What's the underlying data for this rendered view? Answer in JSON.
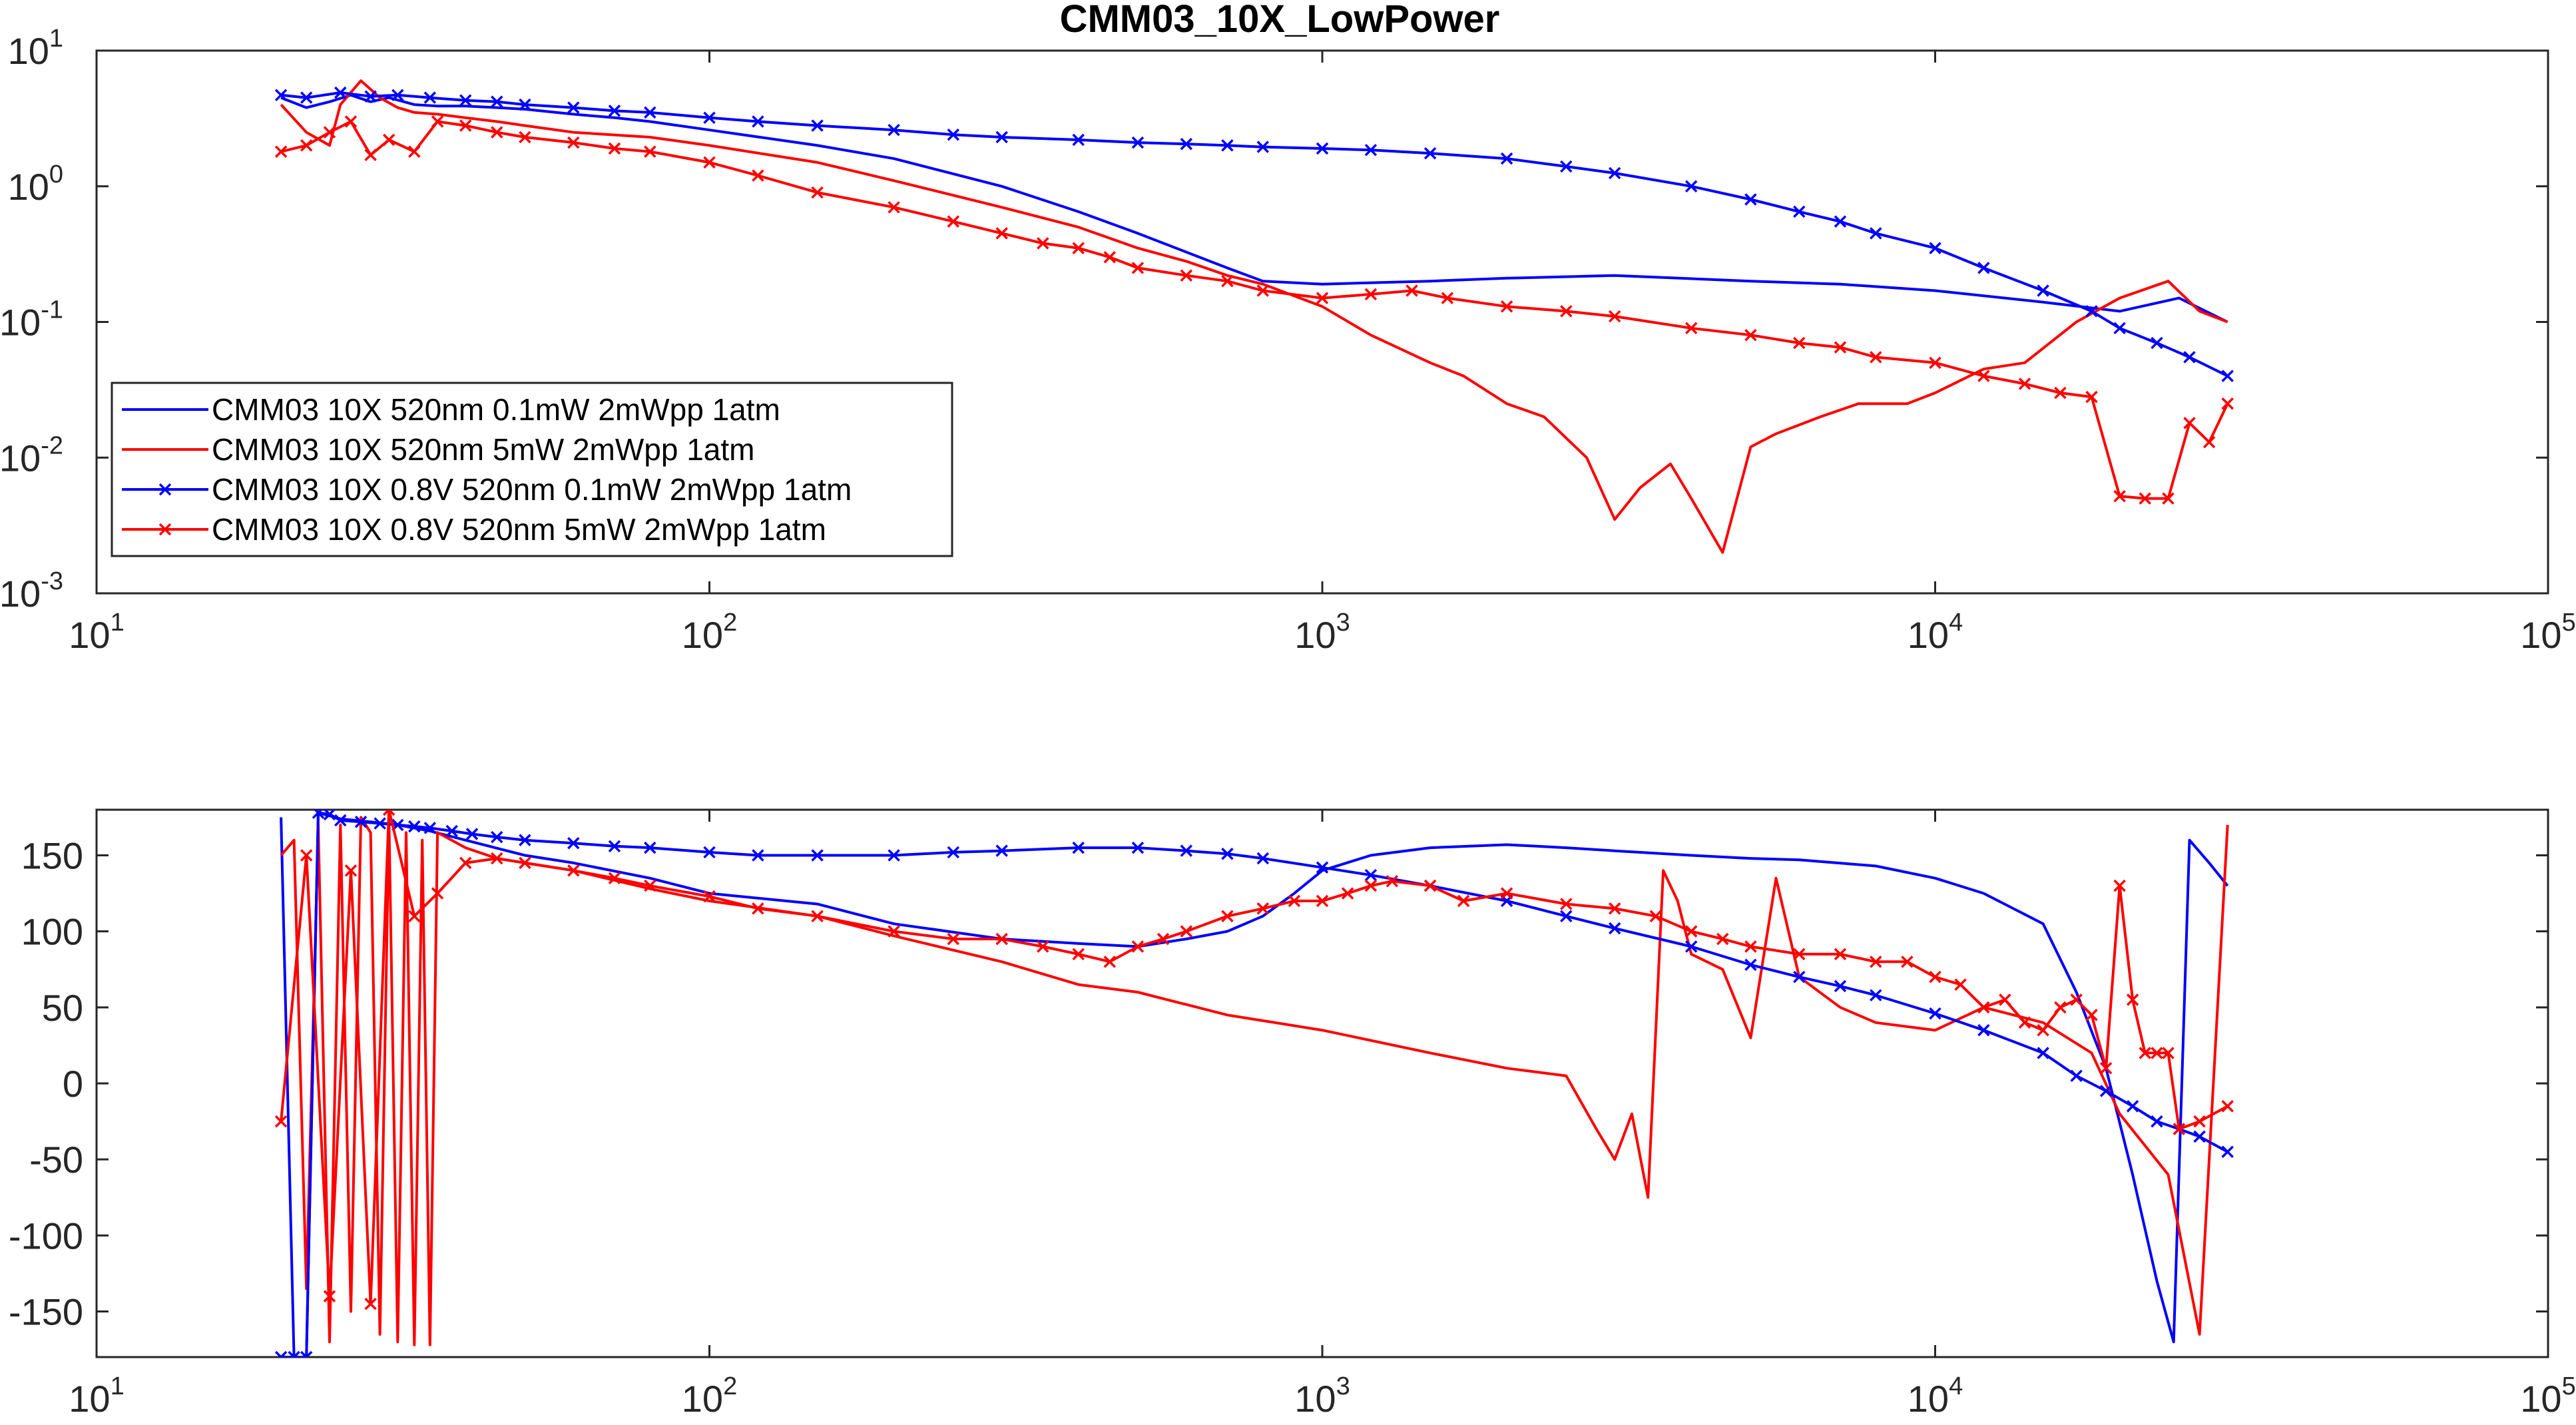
{
  "figure": {
    "title": "CMM03_10X_LowPower"
  },
  "colors": {
    "blue": "#0000FF",
    "red": "#FF0000",
    "axis": "#262626",
    "background": "#FFFFFF"
  },
  "chart_data": [
    {
      "type": "line",
      "title": "CMM03_10X_LowPower",
      "xlabel": "",
      "ylabel": "",
      "xscale": "log",
      "yscale": "log",
      "xlim": [
        10,
        100000
      ],
      "ylim": [
        0.001,
        10
      ],
      "xticks": [
        {
          "base": "10",
          "exp": "1"
        },
        {
          "base": "10",
          "exp": "2"
        },
        {
          "base": "10",
          "exp": "3"
        },
        {
          "base": "10",
          "exp": "4"
        },
        {
          "base": "10",
          "exp": "5"
        }
      ],
      "yticks": [
        {
          "base": "10",
          "exp": "-3"
        },
        {
          "base": "10",
          "exp": "-2"
        },
        {
          "base": "10",
          "exp": "-1"
        },
        {
          "base": "10",
          "exp": "0"
        },
        {
          "base": "10",
          "exp": "1"
        }
      ],
      "grid": false,
      "legend_position": "bottom-left",
      "series": [
        {
          "name": "CMM03 10X 520nm 0.1mW 2mWpp 1atm",
          "color": "#0000FF",
          "marker": "none",
          "x": [
            20,
            22,
            24,
            26,
            28,
            30,
            33,
            36,
            40,
            45,
            50,
            60,
            70,
            80,
            100,
            150,
            200,
            300,
            400,
            500,
            700,
            800,
            1000,
            1500,
            2000,
            3000,
            5000,
            7000,
            10000,
            15000,
            20000,
            25000,
            30000
          ],
          "y": [
            4.5,
            3.8,
            4.2,
            4.7,
            4.2,
            4.5,
            4.0,
            3.9,
            3.9,
            3.8,
            3.7,
            3.4,
            3.2,
            3.0,
            2.6,
            2.0,
            1.6,
            1.0,
            0.65,
            0.45,
            0.25,
            0.2,
            0.19,
            0.2,
            0.21,
            0.22,
            0.2,
            0.19,
            0.17,
            0.14,
            0.12,
            0.15,
            0.1
          ]
        },
        {
          "name": "CMM03 10X 520nm 5mW 2mWpp 1atm",
          "color": "#FF0000",
          "marker": "none",
          "x": [
            20,
            22,
            24,
            25,
            27,
            29,
            31,
            33,
            36,
            40,
            45,
            50,
            60,
            80,
            100,
            150,
            200,
            300,
            400,
            500,
            600,
            700,
            800,
            1000,
            1200,
            1500,
            1700,
            2000,
            2300,
            2700,
            3000,
            3300,
            3700,
            4000,
            4500,
            5000,
            5500,
            6500,
            7500,
            9000,
            10000,
            12000,
            14000,
            17000,
            20000,
            24000,
            27000,
            30000
          ],
          "y": [
            4.0,
            2.5,
            2.0,
            4.0,
            6.0,
            4.5,
            3.8,
            3.5,
            3.4,
            3.2,
            3.0,
            2.8,
            2.5,
            2.3,
            2.0,
            1.5,
            1.1,
            0.7,
            0.5,
            0.35,
            0.28,
            0.22,
            0.19,
            0.13,
            0.08,
            0.05,
            0.04,
            0.025,
            0.02,
            0.01,
            0.0035,
            0.006,
            0.009,
            0.005,
            0.002,
            0.012,
            0.015,
            0.02,
            0.025,
            0.025,
            0.03,
            0.045,
            0.05,
            0.1,
            0.15,
            0.2,
            0.12,
            0.1
          ]
        },
        {
          "name": "CMM03 10X 0.8V 520nm 0.1mW 2mWpp 1atm",
          "color": "#0000FF",
          "marker": "x",
          "x": [
            20,
            22,
            25,
            28,
            31,
            35,
            40,
            45,
            50,
            60,
            70,
            80,
            100,
            120,
            150,
            200,
            250,
            300,
            400,
            500,
            600,
            700,
            800,
            1000,
            1200,
            1500,
            2000,
            2500,
            3000,
            4000,
            5000,
            6000,
            7000,
            8000,
            10000,
            12000,
            15000,
            18000,
            20000,
            23000,
            26000,
            30000
          ],
          "y": [
            4.7,
            4.5,
            4.9,
            4.6,
            4.7,
            4.5,
            4.3,
            4.2,
            4.0,
            3.8,
            3.6,
            3.5,
            3.2,
            3.0,
            2.8,
            2.6,
            2.4,
            2.3,
            2.2,
            2.1,
            2.05,
            2.0,
            1.95,
            1.9,
            1.85,
            1.75,
            1.6,
            1.4,
            1.25,
            1.0,
            0.8,
            0.65,
            0.55,
            0.45,
            0.35,
            0.25,
            0.17,
            0.12,
            0.09,
            0.07,
            0.055,
            0.04
          ]
        },
        {
          "name": "CMM03 10X 0.8V 520nm 5mW 2mWpp 1atm",
          "color": "#FF0000",
          "marker": "x",
          "x": [
            20,
            22,
            24,
            26,
            28,
            30,
            33,
            36,
            40,
            45,
            50,
            60,
            70,
            80,
            100,
            120,
            150,
            200,
            250,
            300,
            350,
            400,
            450,
            500,
            600,
            700,
            800,
            1000,
            1200,
            1400,
            1600,
            2000,
            2500,
            3000,
            4000,
            5000,
            6000,
            7000,
            8000,
            10000,
            12000,
            14000,
            16000,
            18000,
            20000,
            22000,
            24000,
            26000,
            28000,
            30000
          ],
          "y": [
            1.8,
            2.0,
            2.5,
            3.0,
            1.7,
            2.2,
            1.8,
            3.0,
            2.8,
            2.5,
            2.3,
            2.1,
            1.9,
            1.8,
            1.5,
            1.2,
            0.9,
            0.7,
            0.55,
            0.45,
            0.38,
            0.35,
            0.3,
            0.25,
            0.22,
            0.2,
            0.17,
            0.15,
            0.16,
            0.17,
            0.15,
            0.13,
            0.12,
            0.11,
            0.09,
            0.08,
            0.07,
            0.065,
            0.055,
            0.05,
            0.04,
            0.035,
            0.03,
            0.028,
            0.0052,
            0.005,
            0.005,
            0.018,
            0.013,
            0.025
          ]
        }
      ]
    },
    {
      "type": "line",
      "title": "",
      "xlabel": "",
      "ylabel": "",
      "xscale": "log",
      "yscale": "linear",
      "xlim": [
        10,
        100000
      ],
      "ylim": [
        -180,
        180
      ],
      "xticks": [
        {
          "base": "10",
          "exp": "1"
        },
        {
          "base": "10",
          "exp": "2"
        },
        {
          "base": "10",
          "exp": "3"
        },
        {
          "base": "10",
          "exp": "4"
        },
        {
          "base": "10",
          "exp": "5"
        }
      ],
      "yticks": [
        "150",
        "100",
        "50",
        "0",
        "-50",
        "-100",
        "-150"
      ],
      "grid": false,
      "series": [
        {
          "name": "",
          "color": "#0000FF",
          "marker": "none",
          "x": [
            20,
            21,
            22,
            23,
            25,
            28,
            31,
            35,
            40,
            50,
            60,
            80,
            100,
            150,
            200,
            300,
            400,
            500,
            600,
            700,
            800,
            900,
            1000,
            1200,
            1500,
            2000,
            2500,
            3000,
            4000,
            5000,
            6000,
            8000,
            10000,
            12000,
            15000,
            17000,
            19000,
            21000,
            23000,
            24500,
            26000,
            28000,
            30000
          ],
          "y": [
            175,
            -180,
            -180,
            178,
            174,
            172,
            170,
            166,
            160,
            150,
            145,
            135,
            125,
            118,
            105,
            95,
            92,
            90,
            95,
            100,
            110,
            125,
            140,
            150,
            155,
            157,
            155,
            153,
            150,
            148,
            147,
            143,
            135,
            125,
            105,
            60,
            10,
            -60,
            -130,
            -170,
            160,
            145,
            130
          ]
        },
        {
          "name": "",
          "color": "#FF0000",
          "marker": "none",
          "x": [
            20,
            21,
            22,
            23,
            24,
            25,
            26,
            27,
            28,
            29,
            30,
            31,
            32,
            33,
            34,
            35,
            36,
            40,
            45,
            50,
            60,
            80,
            100,
            150,
            200,
            300,
            400,
            500,
            700,
            1000,
            1500,
            2000,
            2500,
            2800,
            3000,
            3200,
            3400,
            3600,
            3800,
            4000,
            4500,
            5000,
            5500,
            6000,
            7000,
            8000,
            10000,
            12000,
            15000,
            18000,
            20000,
            24000,
            27000,
            30000
          ],
          "y": [
            150,
            160,
            -135,
            170,
            -170,
            170,
            -150,
            175,
            165,
            -165,
            175,
            -170,
            165,
            -172,
            160,
            -172,
            165,
            155,
            148,
            145,
            140,
            128,
            120,
            110,
            97,
            80,
            65,
            60,
            45,
            35,
            20,
            10,
            5,
            -30,
            -50,
            -20,
            -75,
            140,
            120,
            85,
            75,
            30,
            135,
            70,
            50,
            40,
            35,
            50,
            40,
            20,
            -20,
            -60,
            -165,
            170
          ]
        },
        {
          "name": "",
          "color": "#0000FF",
          "marker": "x",
          "x": [
            20,
            21,
            22,
            23,
            24,
            25,
            27,
            29,
            31,
            33,
            35,
            38,
            41,
            45,
            50,
            60,
            70,
            80,
            100,
            120,
            150,
            200,
            250,
            300,
            400,
            500,
            600,
            700,
            800,
            1000,
            1200,
            1500,
            2000,
            2500,
            3000,
            4000,
            5000,
            6000,
            7000,
            8000,
            10000,
            12000,
            15000,
            17000,
            19000,
            21000,
            23000,
            25000,
            27000,
            30000
          ],
          "y": [
            -180,
            -180,
            -180,
            178,
            177,
            173,
            172,
            171,
            170,
            169,
            168,
            166,
            164,
            162,
            160,
            158,
            156,
            155,
            152,
            150,
            150,
            150,
            152,
            153,
            155,
            155,
            153,
            151,
            148,
            142,
            137,
            130,
            120,
            110,
            102,
            90,
            78,
            70,
            64,
            58,
            46,
            35,
            20,
            5,
            -5,
            -15,
            -25,
            -30,
            -35,
            -45
          ]
        },
        {
          "name": "",
          "color": "#FF0000",
          "marker": "x",
          "x": [
            20,
            22,
            24,
            26,
            28,
            30,
            33,
            36,
            40,
            45,
            50,
            60,
            70,
            80,
            100,
            120,
            150,
            200,
            250,
            300,
            350,
            400,
            450,
            500,
            550,
            600,
            700,
            800,
            900,
            1000,
            1100,
            1200,
            1300,
            1500,
            1700,
            2000,
            2500,
            3000,
            3500,
            4000,
            4500,
            5000,
            6000,
            7000,
            8000,
            9000,
            10000,
            11000,
            12000,
            13000,
            14000,
            15000,
            16000,
            17000,
            18000,
            19000,
            20000,
            21000,
            22000,
            23000,
            24000,
            25000,
            27000,
            30000
          ],
          "y": [
            -25,
            150,
            -140,
            140,
            -145,
            180,
            110,
            125,
            145,
            148,
            145,
            140,
            135,
            130,
            123,
            115,
            110,
            100,
            95,
            95,
            90,
            85,
            80,
            90,
            95,
            100,
            110,
            115,
            120,
            120,
            125,
            130,
            133,
            130,
            120,
            125,
            118,
            115,
            110,
            100,
            95,
            90,
            85,
            85,
            80,
            80,
            70,
            65,
            50,
            55,
            40,
            35,
            50,
            55,
            45,
            10,
            130,
            55,
            20,
            20,
            20,
            -30,
            -25,
            -15
          ]
        }
      ]
    }
  ]
}
